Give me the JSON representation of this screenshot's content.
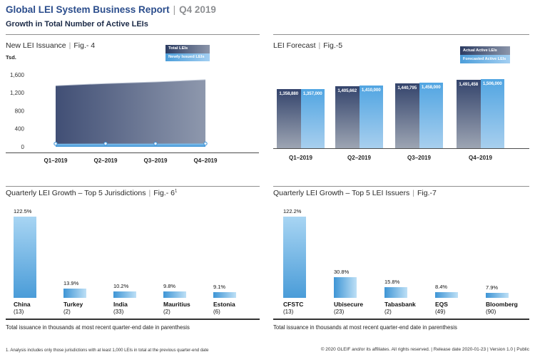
{
  "header": {
    "title": "Global LEI System Business Report",
    "separator": "|",
    "period": "Q4 2019",
    "subtitle": "Growth in Total Number of Active LEIs"
  },
  "chart_data": [
    {
      "id": "fig4",
      "type": "area",
      "title": "New LEI Issuance",
      "figure": "Fig.- 4",
      "ylabel": "Tsd.",
      "categories": [
        "Q1–2019",
        "Q2–2019",
        "Q3–2019",
        "Q4–2019"
      ],
      "yticks": [
        0,
        400,
        800,
        1200,
        1600
      ],
      "ylim": [
        0,
        1600
      ],
      "legend_position": "top-right",
      "series": [
        {
          "name": "Total LEIs",
          "values": [
            1359,
            1406,
            1441,
            1491
          ]
        },
        {
          "name": "Newly Issued LEIs",
          "values": [
            68,
            69,
            70,
            72
          ],
          "estimated": true
        }
      ]
    },
    {
      "id": "fig5",
      "type": "bar",
      "title": "LEI Forecast",
      "figure": "Fig.-5",
      "categories": [
        "Q1–2019",
        "Q2–2019",
        "Q3–2019",
        "Q4–2019"
      ],
      "data_labels": true,
      "legend_position": "top-right",
      "ylim": [
        500000,
        1520000
      ],
      "series": [
        {
          "name": "Actual Active LEIs",
          "values": [
            1358880,
            1405662,
            1440795,
            1491458
          ]
        },
        {
          "name": "Forecasted Active LEIs",
          "values": [
            1357000,
            1410000,
            1458000,
            1506000
          ]
        }
      ]
    },
    {
      "id": "fig6",
      "type": "bar",
      "title": "Quarterly LEI Growth – Top 5 Jurisdictions",
      "figure": "Fig.- 6",
      "figure_sup": "1",
      "categories": [
        "China",
        "Turkey",
        "India",
        "Mauritius",
        "Estonia"
      ],
      "issuance_thousands": [
        13,
        2,
        33,
        2,
        6
      ],
      "values": [
        122.5,
        13.9,
        10.2,
        9.8,
        9.1
      ],
      "value_suffix": "%",
      "caption": "Total issuance in thousands at most recent quarter-end date in parenthesis"
    },
    {
      "id": "fig7",
      "type": "bar",
      "title": "Quarterly LEI Growth – Top 5 LEI Issuers",
      "figure": "Fig.-7",
      "categories": [
        "CFSTC",
        "Ubisecure",
        "Tabasbank",
        "EQS",
        "Bloomberg"
      ],
      "issuance_thousands": [
        13,
        23,
        2,
        49,
        90
      ],
      "values": [
        122.2,
        30.8,
        15.8,
        8.4,
        7.9
      ],
      "value_suffix": "%",
      "caption": "Total issuance in thousands at most recent quarter-end date in parenthesis"
    }
  ],
  "footer": {
    "footnote": "1. Analysis includes only those jurisdictions with at least 1,000 LEIs in total at the previous quarter-end date",
    "copyright": "© 2020 GLEIF and/or its affiliates. All rights reserved.  |  Release date 2020-01-23  |  Version 1.0  |  Public"
  },
  "colors": {
    "brand_blue": "#2b4d8c",
    "period_gray": "#8e9093",
    "navy": "#1b2a47",
    "area_left": "#414f75",
    "area_right": "#8e98ad",
    "band_top": "#85c4ef",
    "band_bottom": "#3e92d5",
    "dark_top": "#34446c",
    "dark_bottom": "#9da5b3",
    "light_top": "#51a5e2",
    "light_bottom": "#a8cfee",
    "legend_dark_left": "#2c3c62",
    "legend_dark_right": "#8b95aa",
    "legend_light_left": "#4c9eda",
    "legend_light_right": "#a3cff2",
    "tall_top": "#a8d5f3",
    "tall_bottom": "#4a9cd8",
    "small_left": "#3e95d5",
    "small_right": "#bee0f6"
  }
}
